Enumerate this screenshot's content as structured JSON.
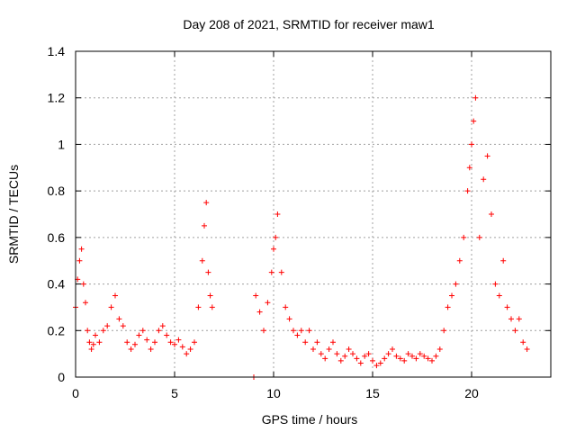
{
  "chart_data": {
    "type": "scatter",
    "title": "Day 208 of 2021, SRMTID for receiver maw1",
    "xlabel": "GPS time / hours",
    "ylabel": "SRMTID / TECUs",
    "xlim": [
      0,
      24
    ],
    "ylim": [
      0,
      1.4
    ],
    "x_ticks": [
      0,
      5,
      10,
      15,
      20
    ],
    "x_tick_labels": [
      "0",
      "5",
      "10",
      "15",
      "20"
    ],
    "y_ticks": [
      0,
      0.2,
      0.4,
      0.6,
      0.8,
      1.0,
      1.2,
      1.4
    ],
    "y_tick_labels": [
      "0",
      "0.2",
      "0.4",
      "0.6",
      "0.8",
      "1",
      "1.2",
      "1.4"
    ],
    "grid": true,
    "marker": "+",
    "series": [
      {
        "name": "maw1",
        "color": "#ff0000",
        "x": [
          0.0,
          0.1,
          0.2,
          0.3,
          0.4,
          0.5,
          0.6,
          0.7,
          0.8,
          0.9,
          1.0,
          1.2,
          1.4,
          1.6,
          1.8,
          2.0,
          2.2,
          2.4,
          2.6,
          2.8,
          3.0,
          3.2,
          3.4,
          3.6,
          3.8,
          4.0,
          4.2,
          4.4,
          4.6,
          4.8,
          5.0,
          5.2,
          5.4,
          5.6,
          5.8,
          6.0,
          6.2,
          6.4,
          6.5,
          6.6,
          6.7,
          6.8,
          6.9,
          9.0,
          9.1,
          9.3,
          9.5,
          9.7,
          9.9,
          10.0,
          10.1,
          10.2,
          10.4,
          10.6,
          10.8,
          11.0,
          11.2,
          11.4,
          11.6,
          11.8,
          12.0,
          12.2,
          12.4,
          12.6,
          12.8,
          13.0,
          13.2,
          13.4,
          13.6,
          13.8,
          14.0,
          14.2,
          14.4,
          14.6,
          14.8,
          15.0,
          15.2,
          15.4,
          15.6,
          15.8,
          16.0,
          16.2,
          16.4,
          16.6,
          16.8,
          17.0,
          17.2,
          17.4,
          17.6,
          17.8,
          18.0,
          18.2,
          18.4,
          18.6,
          18.8,
          19.0,
          19.2,
          19.4,
          19.6,
          19.8,
          19.9,
          20.0,
          20.1,
          20.2,
          20.4,
          20.6,
          20.8,
          21.0,
          21.2,
          21.4,
          21.6,
          21.8,
          22.0,
          22.2,
          22.4,
          22.6,
          22.8
        ],
        "y": [
          0.3,
          0.42,
          0.5,
          0.55,
          0.4,
          0.32,
          0.2,
          0.15,
          0.12,
          0.14,
          0.18,
          0.15,
          0.2,
          0.22,
          0.3,
          0.35,
          0.25,
          0.22,
          0.15,
          0.12,
          0.14,
          0.18,
          0.2,
          0.16,
          0.12,
          0.15,
          0.2,
          0.22,
          0.18,
          0.15,
          0.14,
          0.16,
          0.13,
          0.1,
          0.12,
          0.15,
          0.3,
          0.5,
          0.65,
          0.75,
          0.45,
          0.35,
          0.3,
          0.0,
          0.35,
          0.28,
          0.2,
          0.32,
          0.45,
          0.55,
          0.6,
          0.7,
          0.45,
          0.3,
          0.25,
          0.2,
          0.18,
          0.2,
          0.15,
          0.2,
          0.12,
          0.15,
          0.1,
          0.08,
          0.12,
          0.15,
          0.1,
          0.07,
          0.09,
          0.12,
          0.1,
          0.08,
          0.06,
          0.09,
          0.1,
          0.07,
          0.05,
          0.06,
          0.08,
          0.1,
          0.12,
          0.09,
          0.08,
          0.07,
          0.1,
          0.09,
          0.08,
          0.1,
          0.09,
          0.08,
          0.07,
          0.09,
          0.12,
          0.2,
          0.3,
          0.35,
          0.4,
          0.5,
          0.6,
          0.8,
          0.9,
          1.0,
          1.1,
          1.2,
          0.6,
          0.85,
          0.95,
          0.7,
          0.4,
          0.35,
          0.5,
          0.3,
          0.25,
          0.2,
          0.25,
          0.15,
          0.12
        ]
      }
    ]
  }
}
